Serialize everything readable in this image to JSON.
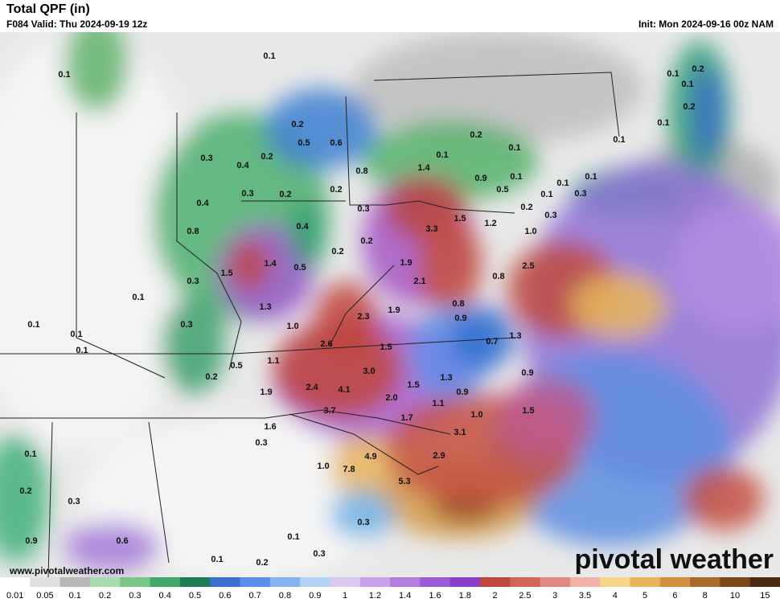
{
  "header": {
    "title": "Total QPF (in)",
    "valid": "F084 Valid: Thu 2024-09-19 12z",
    "init": "Init: Mon 2024-09-16 00z NAM"
  },
  "map": {
    "labels": [
      "0.1",
      "0.1",
      "0.2",
      "0.5",
      "0.6",
      "0.3",
      "0.2",
      "0.4",
      "0.3",
      "0.2",
      "0.2",
      "0.8",
      "0.1",
      "0.2",
      "0.1",
      "0.9",
      "0.5",
      "0.1",
      "0.4",
      "0.3",
      "1.4",
      "0.8",
      "0.4",
      "0.2",
      "0.2",
      "3.3",
      "1.5",
      "1.2",
      "0.2",
      "0.1",
      "0.1",
      "0.1",
      "0.3",
      "0.3",
      "1.0",
      "2.5",
      "1.4",
      "1.5",
      "0.5",
      "1.9",
      "2.1",
      "0.8",
      "0.3",
      "0.1",
      "1.3",
      "1.9",
      "0.8",
      "0.9",
      "1.0",
      "2.3",
      "0.1",
      "0.1",
      "0.1",
      "0.3",
      "2.6",
      "1.5",
      "1.3",
      "0.7",
      "1.1",
      "0.5",
      "3.0",
      "0.9",
      "0.2",
      "1.5",
      "1.3",
      "1.9",
      "2.4",
      "4.1",
      "2.0",
      "1.1",
      "0.9",
      "3.7",
      "1.7",
      "1.0",
      "1.5",
      "1.6",
      "3.1",
      "0.3",
      "0.1",
      "4.9",
      "2.9",
      "1.0",
      "7.8",
      "5.3",
      "0.2",
      "0.3",
      "0.3",
      "0.9",
      "0.6",
      "0.1",
      "0.1",
      "0.2",
      "0.3",
      "0.1",
      "0.2",
      "0.1",
      "0.2",
      "0.1",
      "0.1"
    ]
  },
  "footer": {
    "url": "www.pivotalweather.com",
    "brand": "pivotal weather"
  },
  "colorbar": {
    "labels": [
      "0.01",
      "0.05",
      "0.1",
      "0.2",
      "0.3",
      "0.4",
      "0.5",
      "0.6",
      "0.7",
      "0.8",
      "0.9",
      "1",
      "1.2",
      "1.4",
      "1.6",
      "1.8",
      "2",
      "2.5",
      "3",
      "3.5",
      "4",
      "5",
      "6",
      "8",
      "10",
      "15"
    ]
  }
}
